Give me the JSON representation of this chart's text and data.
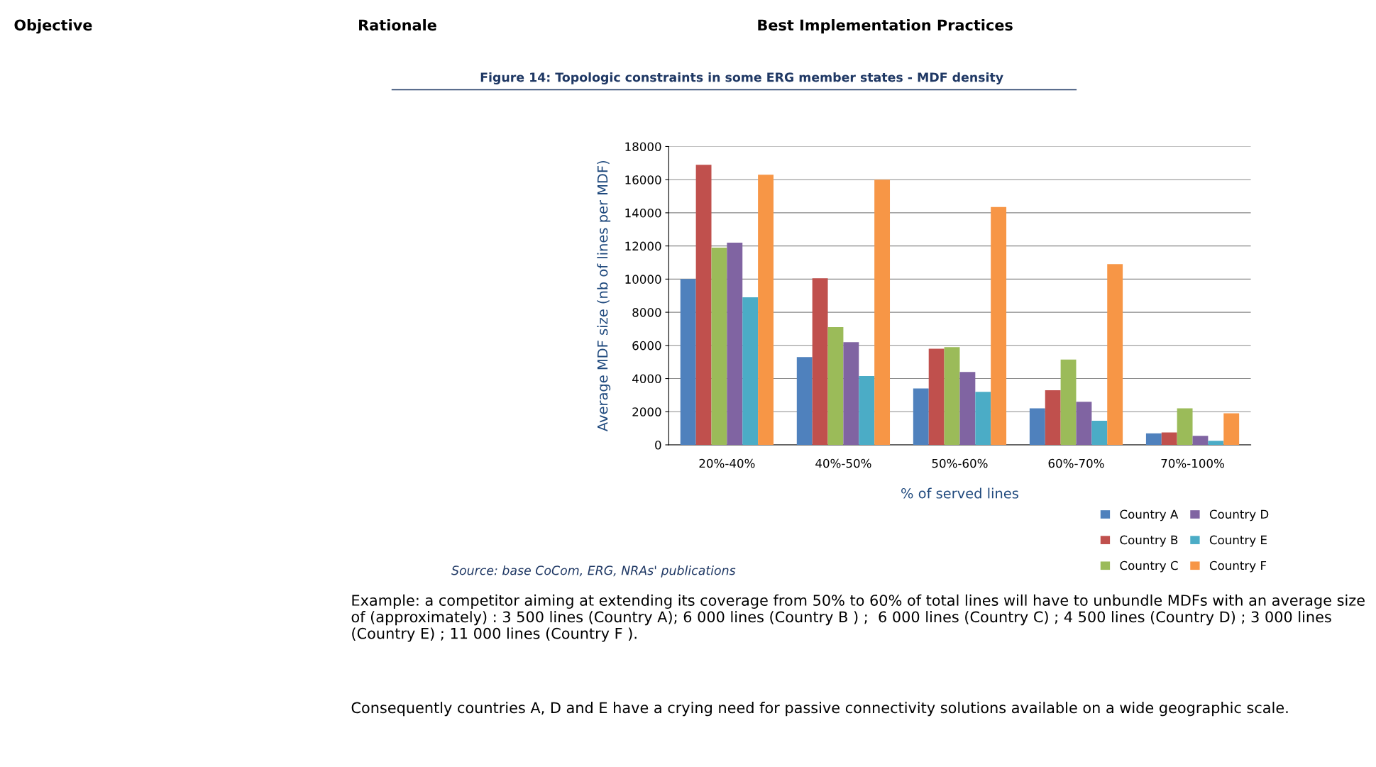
{
  "chart_data": {
    "type": "bar",
    "title": "Figure 14: Topologic constraints in some ERG member states - MDF density",
    "xlabel": "% of served lines",
    "ylabel": "Average MDF size (nb of lines per MDF)",
    "categories": [
      "20%-40%",
      "40%-50%",
      "50%-60%",
      "60%-70%",
      "70%-100%"
    ],
    "series": [
      {
        "name": "Country A",
        "color": "#4f81bd",
        "values": [
          10000,
          5300,
          3400,
          2200,
          700
        ]
      },
      {
        "name": "Country B",
        "color": "#c0504d",
        "values": [
          16900,
          10050,
          5800,
          3300,
          750
        ]
      },
      {
        "name": "Country C",
        "color": "#9bbb59",
        "values": [
          11900,
          7100,
          5900,
          5150,
          2200
        ]
      },
      {
        "name": "Country D",
        "color": "#8064a2",
        "values": [
          12200,
          6200,
          4400,
          2600,
          550
        ]
      },
      {
        "name": "Country E",
        "color": "#4bacc6",
        "values": [
          8900,
          4150,
          3200,
          1450,
          250
        ]
      },
      {
        "name": "Country F",
        "color": "#f79646",
        "values": [
          16300,
          16000,
          14350,
          10900,
          1900
        ]
      }
    ],
    "ylim": [
      0,
      18000
    ],
    "yticks": [
      0,
      2000,
      4000,
      6000,
      8000,
      10000,
      12000,
      14000,
      16000,
      18000
    ],
    "grid": "y",
    "legend": "bottom right",
    "annotations": [
      "Objective",
      "Rationale",
      "Best Implementation Practices",
      "Source: base CoCom, ERG, NRAs' publications",
      "Example: a competitor aiming at extending its coverage from 50% to 60% of total lines will have to unbundle MDFs with an average size of (approximately) : 3 500 lines (Country A); 6 000 lines (Country B ) ;  6 000 lines (Country C) ; 4 500 lines (Country D) ; 3 000 lines (Country E) ; 11 000 lines (Country F ).",
      "Consequently countries A, D and E have a crying need for passive connectivity solutions available on a wide geographic scale."
    ]
  }
}
